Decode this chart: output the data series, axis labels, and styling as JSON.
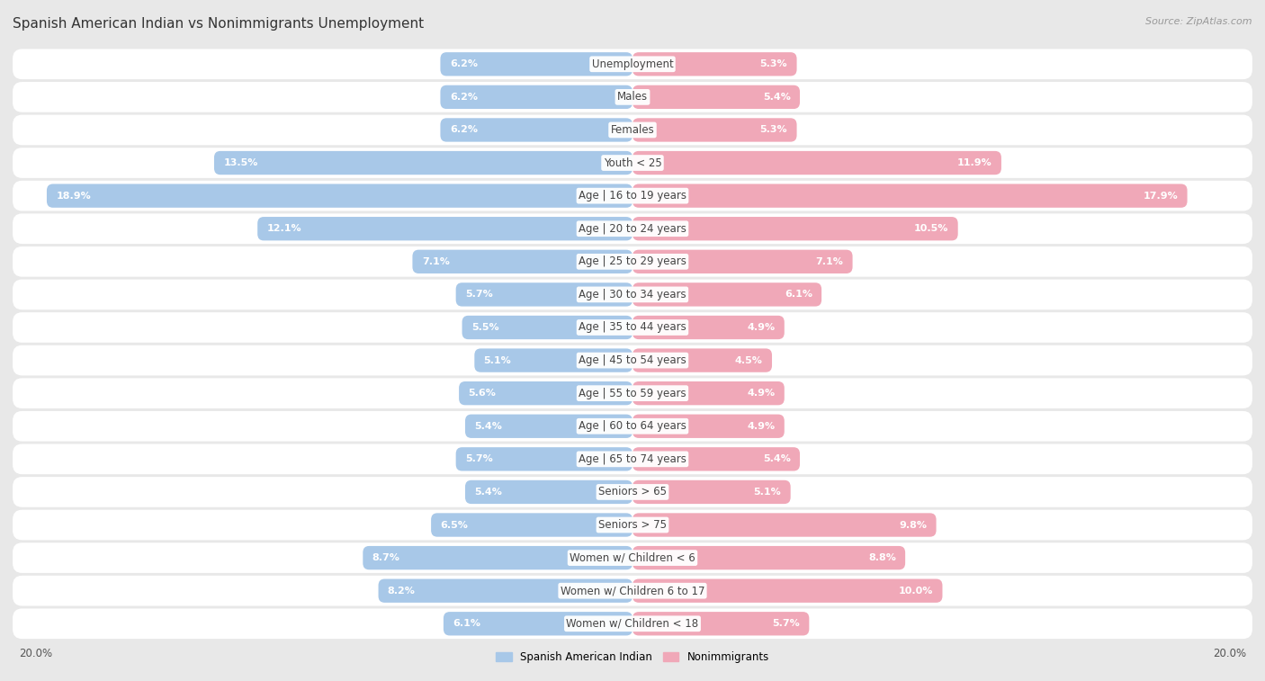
{
  "title": "Spanish American Indian vs Nonimmigrants Unemployment",
  "source": "Source: ZipAtlas.com",
  "categories": [
    "Unemployment",
    "Males",
    "Females",
    "Youth < 25",
    "Age | 16 to 19 years",
    "Age | 20 to 24 years",
    "Age | 25 to 29 years",
    "Age | 30 to 34 years",
    "Age | 35 to 44 years",
    "Age | 45 to 54 years",
    "Age | 55 to 59 years",
    "Age | 60 to 64 years",
    "Age | 65 to 74 years",
    "Seniors > 65",
    "Seniors > 75",
    "Women w/ Children < 6",
    "Women w/ Children 6 to 17",
    "Women w/ Children < 18"
  ],
  "left_values": [
    6.2,
    6.2,
    6.2,
    13.5,
    18.9,
    12.1,
    7.1,
    5.7,
    5.5,
    5.1,
    5.6,
    5.4,
    5.7,
    5.4,
    6.5,
    8.7,
    8.2,
    6.1
  ],
  "right_values": [
    5.3,
    5.4,
    5.3,
    11.9,
    17.9,
    10.5,
    7.1,
    6.1,
    4.9,
    4.5,
    4.9,
    4.9,
    5.4,
    5.1,
    9.8,
    8.8,
    10.0,
    5.7
  ],
  "left_color": "#a8c8e8",
  "right_color": "#f0a8b8",
  "left_label": "Spanish American Indian",
  "right_label": "Nonimmigrants",
  "axis_limit": 20.0,
  "bg_color": "#e8e8e8",
  "row_bg_color": "#f5f5f5",
  "bar_bg_color": "#ffffff",
  "title_fontsize": 11,
  "label_fontsize": 8.5,
  "value_fontsize": 8,
  "source_fontsize": 8
}
